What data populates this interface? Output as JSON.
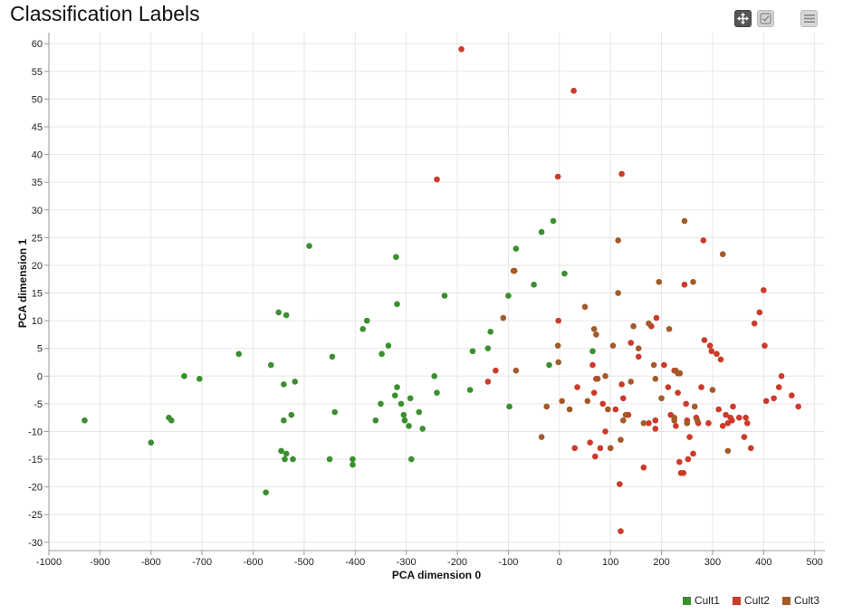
{
  "page": {
    "title": "Classification Labels"
  },
  "toolbar": {
    "pan_icon": "move-icon",
    "select_icon": "checkbox-select-icon",
    "menu_icon": "hamburger-menu-icon"
  },
  "chart_data": {
    "type": "scatter",
    "title": "Classification Labels",
    "xlabel": "PCA dimension 0",
    "ylabel": "PCA dimension 1",
    "xlim": [
      -1000,
      520
    ],
    "ylim": [
      -31.5,
      62
    ],
    "x_ticks": [
      -1000,
      -900,
      -800,
      -700,
      -600,
      -500,
      -400,
      -300,
      -200,
      -100,
      0,
      100,
      200,
      300,
      400,
      500
    ],
    "y_ticks": [
      -30,
      -25,
      -20,
      -15,
      -10,
      -5,
      0,
      5,
      10,
      15,
      20,
      25,
      30,
      35,
      40,
      45,
      50,
      55,
      60
    ],
    "grid": true,
    "legend_position": "bottom-right",
    "series": [
      {
        "name": "Cult1",
        "color": "#3a8f2e",
        "points": [
          [
            -930,
            -8
          ],
          [
            -800,
            -12
          ],
          [
            -765,
            -7.5
          ],
          [
            -760,
            -8
          ],
          [
            -735,
            0
          ],
          [
            -705,
            -0.5
          ],
          [
            -628,
            4
          ],
          [
            -575,
            -21
          ],
          [
            -565,
            2
          ],
          [
            -550,
            11.5
          ],
          [
            -545,
            -13.5
          ],
          [
            -540,
            -1.5
          ],
          [
            -540,
            -8
          ],
          [
            -538,
            -15
          ],
          [
            -535,
            11
          ],
          [
            -535,
            -14
          ],
          [
            -525,
            -7
          ],
          [
            -522,
            -15
          ],
          [
            -518,
            -1
          ],
          [
            -490,
            23.5
          ],
          [
            -450,
            -15
          ],
          [
            -445,
            3.5
          ],
          [
            -440,
            -6.5
          ],
          [
            -405,
            -15
          ],
          [
            -405,
            -16
          ],
          [
            -385,
            8.5
          ],
          [
            -377,
            10
          ],
          [
            -360,
            -8
          ],
          [
            -350,
            -5
          ],
          [
            -348,
            4
          ],
          [
            -335,
            5.5
          ],
          [
            -322,
            -3.5
          ],
          [
            -320,
            21.5
          ],
          [
            -318,
            13
          ],
          [
            -318,
            -2
          ],
          [
            -310,
            -5
          ],
          [
            -305,
            -7
          ],
          [
            -303,
            -8
          ],
          [
            -295,
            -9
          ],
          [
            -292,
            -4
          ],
          [
            -290,
            -15
          ],
          [
            -275,
            -6.5
          ],
          [
            -268,
            -9.5
          ],
          [
            -245,
            0
          ],
          [
            -240,
            -3
          ],
          [
            -225,
            14.5
          ],
          [
            -175,
            -2.5
          ],
          [
            -170,
            4.5
          ],
          [
            -140,
            5
          ],
          [
            -135,
            8
          ],
          [
            -100,
            14.5
          ],
          [
            -98,
            -5.5
          ],
          [
            -85,
            23
          ],
          [
            -50,
            16.5
          ],
          [
            -35,
            26
          ],
          [
            -20,
            2
          ],
          [
            -12,
            28
          ],
          [
            10,
            18.5
          ],
          [
            65,
            4.5
          ]
        ]
      },
      {
        "name": "Cult2",
        "color": "#cc3a2a",
        "points": [
          [
            -192,
            59
          ],
          [
            -240,
            35.5
          ],
          [
            28,
            51.5
          ],
          [
            -3,
            36
          ],
          [
            122,
            36.5
          ],
          [
            -140,
            -1
          ],
          [
            -125,
            1
          ],
          [
            -2,
            10
          ],
          [
            30,
            -13
          ],
          [
            35,
            -2
          ],
          [
            60,
            -12
          ],
          [
            65,
            2
          ],
          [
            68,
            -3
          ],
          [
            70,
            -14.5
          ],
          [
            72,
            -0.5
          ],
          [
            80,
            -13
          ],
          [
            85,
            -5
          ],
          [
            90,
            -10
          ],
          [
            100,
            -13
          ],
          [
            110,
            -6
          ],
          [
            118,
            -19.5
          ],
          [
            120,
            -28
          ],
          [
            122,
            -1.5
          ],
          [
            125,
            -4
          ],
          [
            135,
            -7
          ],
          [
            140,
            6
          ],
          [
            155,
            3.5
          ],
          [
            165,
            -16.5
          ],
          [
            175,
            -8.5
          ],
          [
            180,
            9
          ],
          [
            188,
            -8
          ],
          [
            188,
            -9.5
          ],
          [
            190,
            10.5
          ],
          [
            205,
            2
          ],
          [
            213,
            -2
          ],
          [
            218,
            -7
          ],
          [
            225,
            1
          ],
          [
            228,
            -9
          ],
          [
            232,
            -3
          ],
          [
            235,
            -15.5
          ],
          [
            235,
            0.5
          ],
          [
            238,
            -17.5
          ],
          [
            243,
            -17.5
          ],
          [
            245,
            16.5
          ],
          [
            248,
            -5
          ],
          [
            250,
            -8
          ],
          [
            252,
            -15
          ],
          [
            255,
            -11
          ],
          [
            262,
            -14
          ],
          [
            268,
            -7.5
          ],
          [
            272,
            -8.5
          ],
          [
            278,
            -2
          ],
          [
            282,
            24.5
          ],
          [
            284,
            6.5
          ],
          [
            292,
            -8.5
          ],
          [
            295,
            5.5
          ],
          [
            298,
            4.5
          ],
          [
            308,
            4
          ],
          [
            312,
            -6
          ],
          [
            316,
            3
          ],
          [
            320,
            -9
          ],
          [
            326,
            -7
          ],
          [
            330,
            -8.5
          ],
          [
            335,
            -7.5
          ],
          [
            338,
            -8
          ],
          [
            340,
            -5.5
          ],
          [
            352,
            -7.5
          ],
          [
            362,
            -11
          ],
          [
            365,
            -7.5
          ],
          [
            368,
            -8.5
          ],
          [
            375,
            -13
          ],
          [
            382,
            9.5
          ],
          [
            392,
            11.5
          ],
          [
            400,
            15.5
          ],
          [
            402,
            5.5
          ],
          [
            405,
            -4.5
          ],
          [
            420,
            -4
          ],
          [
            430,
            -2
          ],
          [
            435,
            0
          ],
          [
            455,
            -3.5
          ],
          [
            468,
            -5.5
          ]
        ]
      },
      {
        "name": "Cult3",
        "color": "#a35a28",
        "points": [
          [
            -110,
            10.5
          ],
          [
            -90,
            19
          ],
          [
            -88,
            19
          ],
          [
            -85,
            1
          ],
          [
            -35,
            -11
          ],
          [
            -25,
            -5.5
          ],
          [
            -3,
            5.5
          ],
          [
            -2,
            2.5
          ],
          [
            5,
            -4.5
          ],
          [
            20,
            -6
          ],
          [
            50,
            12.5
          ],
          [
            55,
            -4.5
          ],
          [
            68,
            8.5
          ],
          [
            72,
            7.5
          ],
          [
            75,
            -0.5
          ],
          [
            90,
            0
          ],
          [
            95,
            -6
          ],
          [
            100,
            -13
          ],
          [
            105,
            5.5
          ],
          [
            115,
            24.5
          ],
          [
            115,
            15
          ],
          [
            120,
            -11.5
          ],
          [
            125,
            -8
          ],
          [
            130,
            -7
          ],
          [
            140,
            -1
          ],
          [
            145,
            9
          ],
          [
            155,
            5
          ],
          [
            165,
            -8.5
          ],
          [
            175,
            9.5
          ],
          [
            185,
            2
          ],
          [
            188,
            -0.5
          ],
          [
            195,
            17
          ],
          [
            200,
            -4
          ],
          [
            215,
            8.5
          ],
          [
            225,
            -7.5
          ],
          [
            225,
            -8
          ],
          [
            228,
            1
          ],
          [
            232,
            0.5
          ],
          [
            236,
            0.5
          ],
          [
            245,
            28
          ],
          [
            250,
            -8.5
          ],
          [
            262,
            17
          ],
          [
            265,
            -5.5
          ],
          [
            270,
            -8
          ],
          [
            300,
            -2.5
          ],
          [
            320,
            22
          ],
          [
            330,
            -13.5
          ]
        ]
      }
    ]
  },
  "legend": {
    "items": [
      {
        "label": "Cult1",
        "color": "#3a8f2e"
      },
      {
        "label": "Cult2",
        "color": "#cc3a2a"
      },
      {
        "label": "Cult3",
        "color": "#a35a28"
      }
    ]
  }
}
